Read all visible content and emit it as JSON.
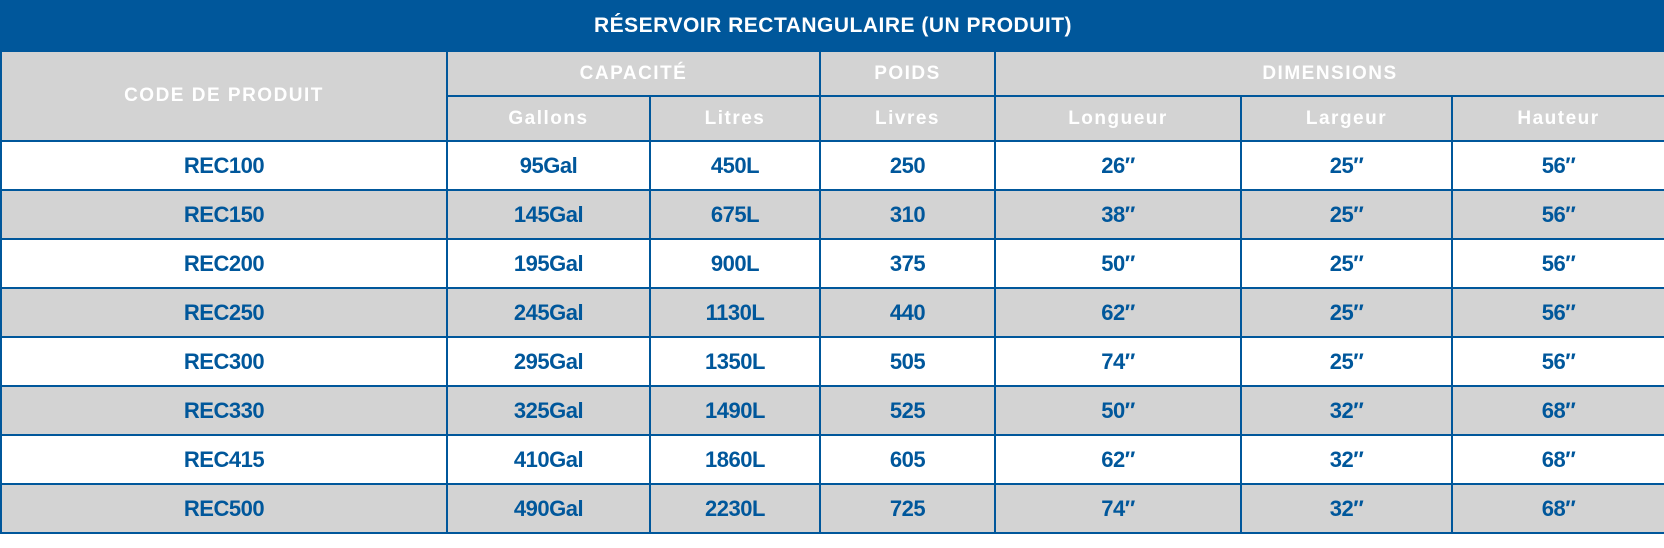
{
  "title": "RÉSERVOIR RECTANGULAIRE (UN PRODUIT)",
  "headers": {
    "code": "CODE DE PRODUIT",
    "capacite": "CAPACITÉ",
    "poids": "POIDS",
    "dimensions": "DIMENSIONS",
    "gallons": "Gallons",
    "litres": "Litres",
    "livres": "Livres",
    "longueur": "Longueur",
    "largeur": "Largeur",
    "hauteur": "Hauteur"
  },
  "colors": {
    "brand_blue": "#00579b",
    "header_gray": "#d3d3d3",
    "row_white": "#ffffff"
  },
  "rows": [
    [
      "REC100",
      "95Gal",
      "450L",
      "250",
      "26″",
      "25″",
      "56″"
    ],
    [
      "REC150",
      "145Gal",
      "675L",
      "310",
      "38″",
      "25″",
      "56″"
    ],
    [
      "REC200",
      "195Gal",
      "900L",
      "375",
      "50″",
      "25″",
      "56″"
    ],
    [
      "REC250",
      "245Gal",
      "1130L",
      "440",
      "62″",
      "25″",
      "56″"
    ],
    [
      "REC300",
      "295Gal",
      "1350L",
      "505",
      "74″",
      "25″",
      "56″"
    ],
    [
      "REC330",
      "325Gal",
      "1490L",
      "525",
      "50″",
      "32″",
      "68″"
    ],
    [
      "REC415",
      "410Gal",
      "1860L",
      "605",
      "62″",
      "32″",
      "68″"
    ],
    [
      "REC500",
      "490Gal",
      "2230L",
      "725",
      "74″",
      "32″",
      "68″"
    ]
  ]
}
